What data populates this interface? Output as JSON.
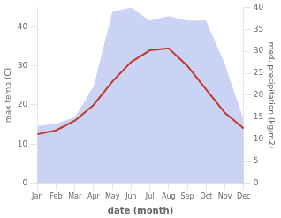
{
  "chart_data": {
    "type": "line",
    "categories": [
      "Jan",
      "Feb",
      "Mar",
      "Apr",
      "May",
      "Jun",
      "Jul",
      "Aug",
      "Sep",
      "Oct",
      "Nov",
      "Dec"
    ],
    "series": [
      {
        "type": "line",
        "color": "#c0392b",
        "axis": "y",
        "values": [
          12.5,
          13.5,
          16.0,
          20.0,
          26.0,
          31.0,
          34.0,
          34.5,
          30.0,
          24.0,
          18.0,
          14.0
        ]
      },
      {
        "type": "area",
        "color": "#b8c4f0",
        "axis": "y2",
        "values": [
          13.0,
          13.5,
          15.0,
          22.0,
          39.0,
          40.0,
          37.0,
          38.0,
          37.0,
          37.0,
          27.0,
          14.5
        ]
      }
    ],
    "xlabel": "date (month)",
    "ylabel": "max temp (C)",
    "y2label": "med. precipitation (kg/m2)",
    "ylim": [
      0,
      45
    ],
    "yticks": [
      0,
      10,
      20,
      30,
      40
    ],
    "y2lim": [
      0,
      40
    ],
    "y2ticks": [
      0,
      5,
      10,
      15,
      20,
      25,
      30,
      35,
      40
    ],
    "grid": false
  }
}
